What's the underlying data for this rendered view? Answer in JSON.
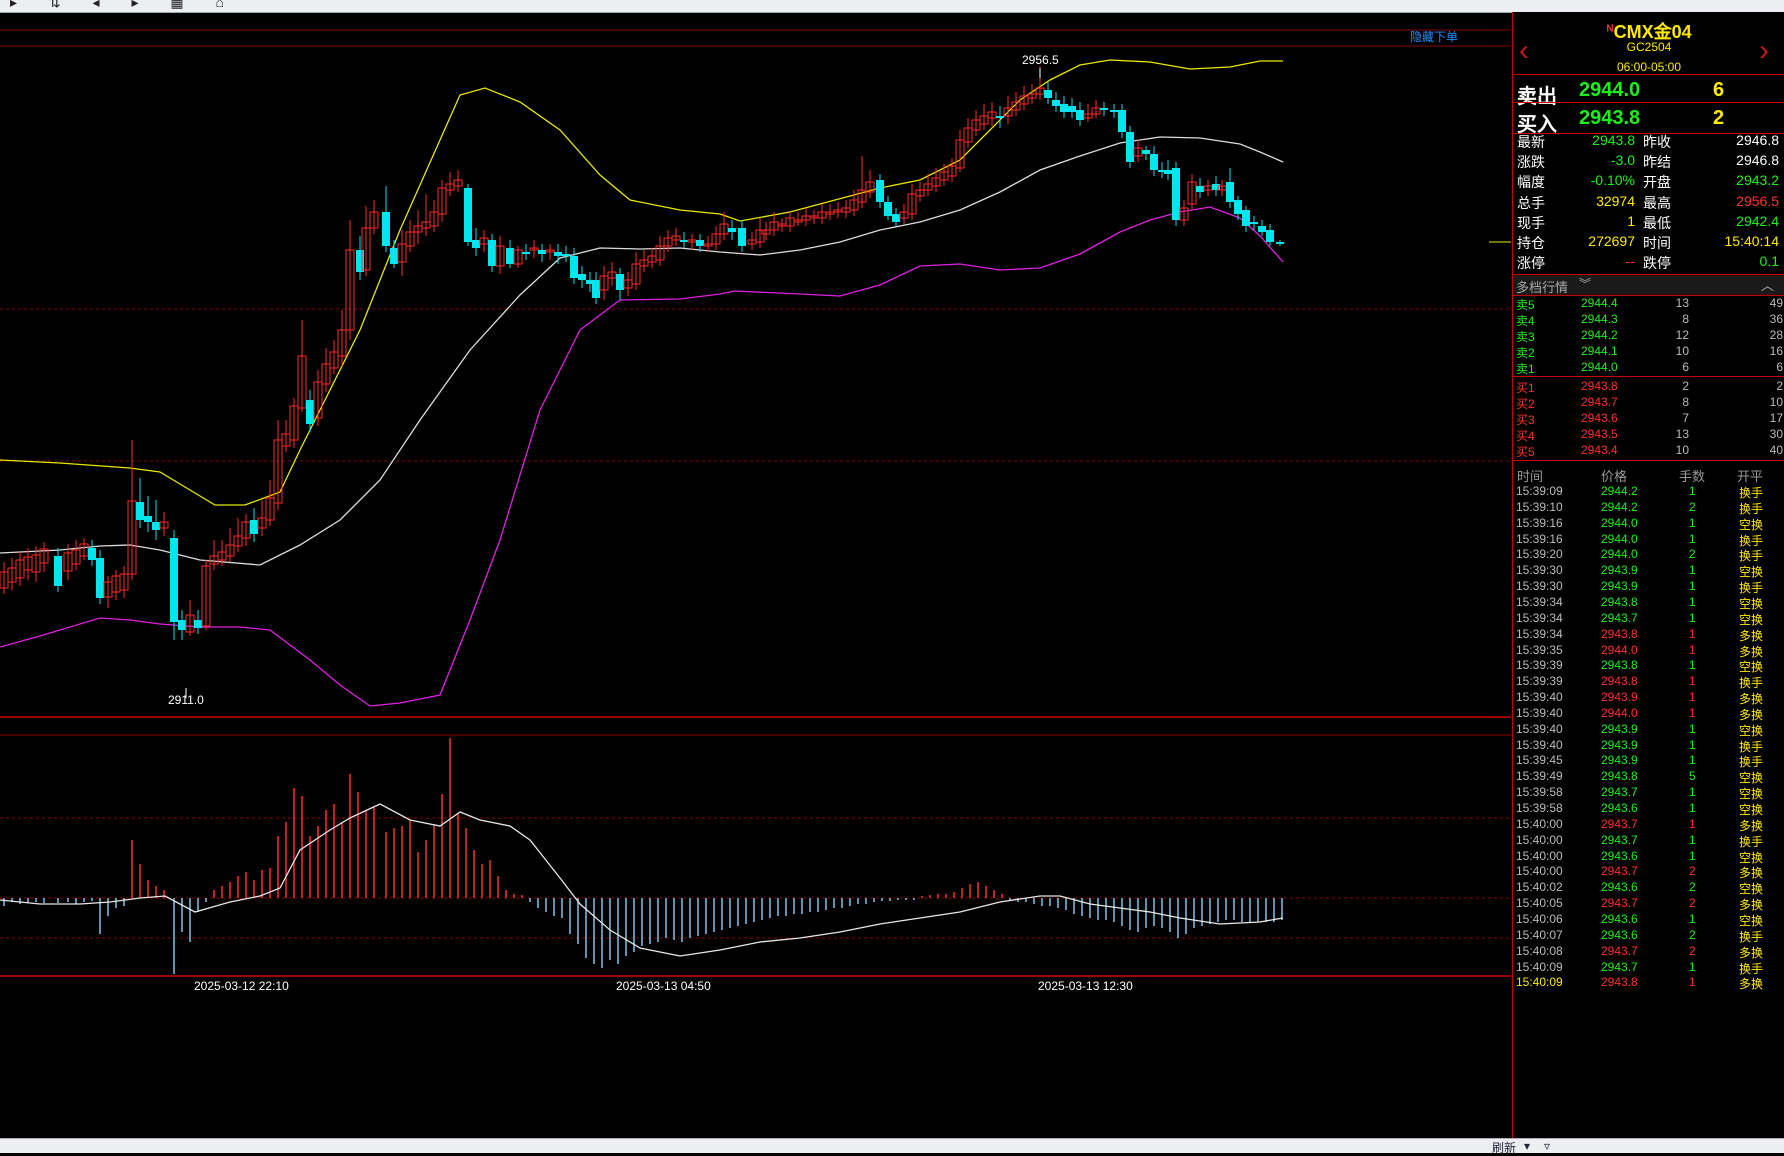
{
  "toolbar": {
    "icons": [
      "arrow-icon",
      "sort-icon",
      "back-icon",
      "forward-icon",
      "grid-icon",
      "chart-icon"
    ]
  },
  "chart": {
    "hide_order_label": "隐藏下单",
    "high_label": "2956.5",
    "low_label": "2911.0",
    "x_labels": [
      "2025-03-12 22:10",
      "2025-03-13 04:50",
      "2025-03-13 12:30"
    ],
    "colors": {
      "up": "#ff2a2a",
      "down": "#00e5ee",
      "boll_upper": "#e8e800",
      "boll_mid": "#dddddd",
      "boll_lower": "#e020e0",
      "grid": "#8a0000"
    }
  },
  "chart_data": {
    "type": "candlestick",
    "x": [
      "2025-03-12 22:10",
      "2025-03-13 04:50",
      "2025-03-13 12:30"
    ],
    "ylim": [
      2911.0,
      2956.5
    ],
    "high": 2956.5,
    "low": 2911.0,
    "indicators": [
      "BOLL upper",
      "BOLL mid",
      "BOLL lower",
      "MACD histogram",
      "MACD line"
    ]
  },
  "quote": {
    "name": "CMX金04",
    "name_prefix": "N",
    "code": "GC2504",
    "session": "06:00-05:00",
    "sell_label": "卖出",
    "sell_price": "2944.0",
    "sell_volume": "6",
    "buy_label": "买入",
    "buy_price": "2943.8",
    "buy_volume": "2",
    "stats": [
      {
        "l1": "最新",
        "v1": "2943.8",
        "c1": "#1cf01c",
        "l2": "昨收",
        "v2": "2946.8",
        "c2": "#ffffff"
      },
      {
        "l1": "涨跌",
        "v1": "-3.0",
        "c1": "#1cf01c",
        "l2": "昨结",
        "v2": "2946.8",
        "c2": "#ffffff"
      },
      {
        "l1": "幅度",
        "v1": "-0.10%",
        "c1": "#1cf01c",
        "l2": "开盘",
        "v2": "2943.2",
        "c2": "#1cf01c"
      },
      {
        "l1": "总手",
        "v1": "32974",
        "c1": "#ffea00",
        "l2": "最高",
        "v2": "2956.5",
        "c2": "#ff3030"
      },
      {
        "l1": "现手",
        "v1": "1",
        "c1": "#ffea00",
        "l2": "最低",
        "v2": "2942.4",
        "c2": "#1cf01c"
      },
      {
        "l1": "持仓",
        "v1": "272697",
        "c1": "#ffea00",
        "l2": "时间",
        "v2": "15:40:14",
        "c2": "#ffea00"
      },
      {
        "l1": "涨停",
        "v1": "--",
        "c1": "#ff3030",
        "l2": "跌停",
        "v2": "0.1",
        "c2": "#1cf01c"
      }
    ],
    "depth_label": "多档行情",
    "asks": [
      {
        "label": "卖5",
        "price": "2944.4",
        "vol": "13",
        "cum": "49"
      },
      {
        "label": "卖4",
        "price": "2944.3",
        "vol": "8",
        "cum": "36"
      },
      {
        "label": "卖3",
        "price": "2944.2",
        "vol": "12",
        "cum": "28"
      },
      {
        "label": "卖2",
        "price": "2944.1",
        "vol": "10",
        "cum": "16"
      },
      {
        "label": "卖1",
        "price": "2944.0",
        "vol": "6",
        "cum": "6"
      }
    ],
    "bids": [
      {
        "label": "买1",
        "price": "2943.8",
        "vol": "2",
        "cum": "2"
      },
      {
        "label": "买2",
        "price": "2943.7",
        "vol": "8",
        "cum": "10"
      },
      {
        "label": "买3",
        "price": "2943.6",
        "vol": "7",
        "cum": "17"
      },
      {
        "label": "买4",
        "price": "2943.5",
        "vol": "13",
        "cum": "30"
      },
      {
        "label": "买5",
        "price": "2943.4",
        "vol": "10",
        "cum": "40"
      }
    ],
    "ticks_header": {
      "time": "时间",
      "price": "价格",
      "vol": "手数",
      "type": "开平"
    },
    "ticks": [
      {
        "t": "15:39:09",
        "p": "2944.2",
        "pc": "#1cf01c",
        "v": "1",
        "vc": "#1cf01c",
        "k": "换手"
      },
      {
        "t": "15:39:10",
        "p": "2944.2",
        "pc": "#1cf01c",
        "v": "2",
        "vc": "#1cf01c",
        "k": "换手"
      },
      {
        "t": "15:39:16",
        "p": "2944.0",
        "pc": "#1cf01c",
        "v": "1",
        "vc": "#1cf01c",
        "k": "空换"
      },
      {
        "t": "15:39:16",
        "p": "2944.0",
        "pc": "#1cf01c",
        "v": "1",
        "vc": "#1cf01c",
        "k": "换手"
      },
      {
        "t": "15:39:20",
        "p": "2944.0",
        "pc": "#1cf01c",
        "v": "2",
        "vc": "#1cf01c",
        "k": "换手"
      },
      {
        "t": "15:39:30",
        "p": "2943.9",
        "pc": "#1cf01c",
        "v": "1",
        "vc": "#1cf01c",
        "k": "空换"
      },
      {
        "t": "15:39:30",
        "p": "2943.9",
        "pc": "#1cf01c",
        "v": "1",
        "vc": "#1cf01c",
        "k": "换手"
      },
      {
        "t": "15:39:34",
        "p": "2943.8",
        "pc": "#1cf01c",
        "v": "1",
        "vc": "#1cf01c",
        "k": "空换"
      },
      {
        "t": "15:39:34",
        "p": "2943.7",
        "pc": "#1cf01c",
        "v": "1",
        "vc": "#1cf01c",
        "k": "空换"
      },
      {
        "t": "15:39:34",
        "p": "2943.8",
        "pc": "#ff3030",
        "v": "1",
        "vc": "#ff3030",
        "k": "多换"
      },
      {
        "t": "15:39:35",
        "p": "2944.0",
        "pc": "#ff3030",
        "v": "1",
        "vc": "#ff3030",
        "k": "多换"
      },
      {
        "t": "15:39:39",
        "p": "2943.8",
        "pc": "#1cf01c",
        "v": "1",
        "vc": "#1cf01c",
        "k": "空换"
      },
      {
        "t": "15:39:39",
        "p": "2943.8",
        "pc": "#ff3030",
        "v": "1",
        "vc": "#ff3030",
        "k": "换手"
      },
      {
        "t": "15:39:40",
        "p": "2943.9",
        "pc": "#ff3030",
        "v": "1",
        "vc": "#ff3030",
        "k": "多换"
      },
      {
        "t": "15:39:40",
        "p": "2944.0",
        "pc": "#ff3030",
        "v": "1",
        "vc": "#ff3030",
        "k": "多换"
      },
      {
        "t": "15:39:40",
        "p": "2943.9",
        "pc": "#1cf01c",
        "v": "1",
        "vc": "#1cf01c",
        "k": "空换"
      },
      {
        "t": "15:39:40",
        "p": "2943.9",
        "pc": "#1cf01c",
        "v": "1",
        "vc": "#1cf01c",
        "k": "换手"
      },
      {
        "t": "15:39:45",
        "p": "2943.9",
        "pc": "#1cf01c",
        "v": "1",
        "vc": "#1cf01c",
        "k": "换手"
      },
      {
        "t": "15:39:49",
        "p": "2943.8",
        "pc": "#1cf01c",
        "v": "5",
        "vc": "#1cf01c",
        "k": "空换"
      },
      {
        "t": "15:39:58",
        "p": "2943.7",
        "pc": "#1cf01c",
        "v": "1",
        "vc": "#1cf01c",
        "k": "空换"
      },
      {
        "t": "15:39:58",
        "p": "2943.6",
        "pc": "#1cf01c",
        "v": "1",
        "vc": "#1cf01c",
        "k": "空换"
      },
      {
        "t": "15:40:00",
        "p": "2943.7",
        "pc": "#ff3030",
        "v": "1",
        "vc": "#ff3030",
        "k": "多换"
      },
      {
        "t": "15:40:00",
        "p": "2943.7",
        "pc": "#1cf01c",
        "v": "1",
        "vc": "#1cf01c",
        "k": "换手"
      },
      {
        "t": "15:40:00",
        "p": "2943.6",
        "pc": "#1cf01c",
        "v": "1",
        "vc": "#1cf01c",
        "k": "空换"
      },
      {
        "t": "15:40:00",
        "p": "2943.7",
        "pc": "#ff3030",
        "v": "2",
        "vc": "#ff3030",
        "k": "多换"
      },
      {
        "t": "15:40:02",
        "p": "2943.6",
        "pc": "#1cf01c",
        "v": "2",
        "vc": "#1cf01c",
        "k": "空换"
      },
      {
        "t": "15:40:05",
        "p": "2943.7",
        "pc": "#ff3030",
        "v": "2",
        "vc": "#ff3030",
        "k": "多换"
      },
      {
        "t": "15:40:06",
        "p": "2943.6",
        "pc": "#1cf01c",
        "v": "1",
        "vc": "#1cf01c",
        "k": "空换"
      },
      {
        "t": "15:40:07",
        "p": "2943.6",
        "pc": "#1cf01c",
        "v": "2",
        "vc": "#1cf01c",
        "k": "换手"
      },
      {
        "t": "15:40:08",
        "p": "2943.7",
        "pc": "#ff3030",
        "v": "2",
        "vc": "#ff3030",
        "k": "多换"
      },
      {
        "t": "15:40:09",
        "p": "2943.7",
        "pc": "#1cf01c",
        "v": "1",
        "vc": "#1cf01c",
        "k": "换手"
      },
      {
        "t": "15:40:09",
        "p": "2943.8",
        "pc": "#ff3030",
        "v": "1",
        "vc": "#ff3030",
        "k": "多换"
      }
    ]
  },
  "bottombar": {
    "refresh_label": "刷新"
  }
}
